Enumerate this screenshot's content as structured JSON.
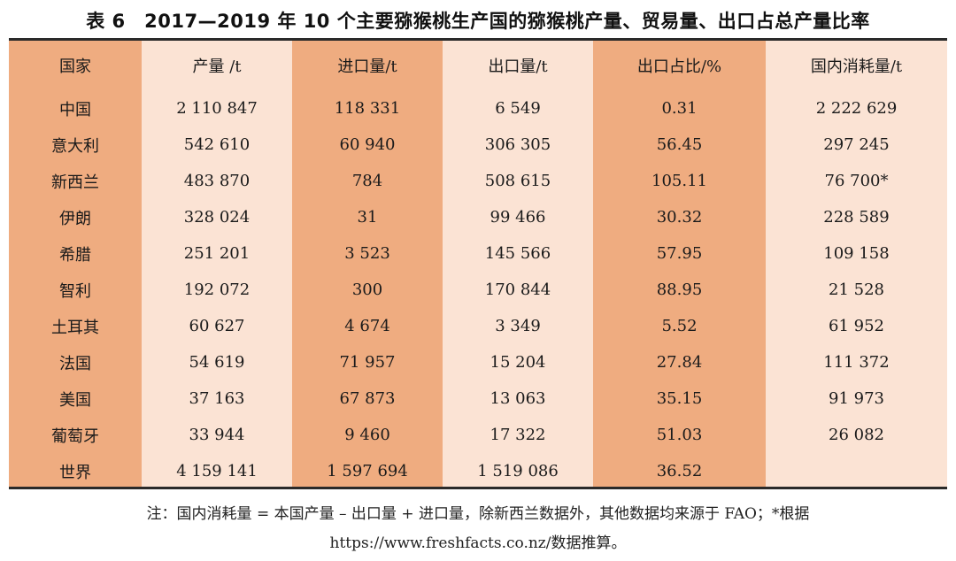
{
  "title": "表 6　2017—2019 年 10 个主要猕猴桃生产国的猕猴桃产量、贸易量、出口占总产量比率",
  "columns": [
    "国家",
    "产量 /t",
    "进口量/t",
    "出口量/t",
    "出口占比/%",
    "国内消耗量/t"
  ],
  "rows": [
    [
      "中国",
      "2 110 847",
      "118 331",
      "6 549",
      "0.31",
      "2 222 629"
    ],
    [
      "意大利",
      "542 610",
      "60 940",
      "306 305",
      "56.45",
      "297 245"
    ],
    [
      "新西兰",
      "483 870",
      "784",
      "508 615",
      "105.11",
      "76 700*"
    ],
    [
      "伊朗",
      "328 024",
      "31",
      "99 466",
      "30.32",
      "228 589"
    ],
    [
      "希腊",
      "251 201",
      "3 523",
      "145 566",
      "57.95",
      "109 158"
    ],
    [
      "智利",
      "192 072",
      "300",
      "170 844",
      "88.95",
      "21 528"
    ],
    [
      "土耳其",
      "60 627",
      "4 674",
      "3 349",
      "5.52",
      "61 952"
    ],
    [
      "法国",
      "54 619",
      "71 957",
      "15 204",
      "27.84",
      "111 372"
    ],
    [
      "美国",
      "37 163",
      "67 873",
      "13 063",
      "35.15",
      "91 973"
    ],
    [
      "葡萄牙",
      "33 944",
      "9 460",
      "17 322",
      "51.03",
      "26 082"
    ],
    [
      "世界",
      "4 159 141",
      "1 597 694",
      "1 519 086",
      "36.52",
      ""
    ]
  ],
  "note": {
    "line1": "注：国内消耗量 = 本国产量 – 出口量 + 进口量，除新西兰数据外，其他数据均来源于 FAO；*根据",
    "line2": "https://www.freshfacts.co.nz/数据推算。"
  },
  "colors": {
    "dark_column": "#efac80",
    "light_column": "#fbe3d4"
  }
}
